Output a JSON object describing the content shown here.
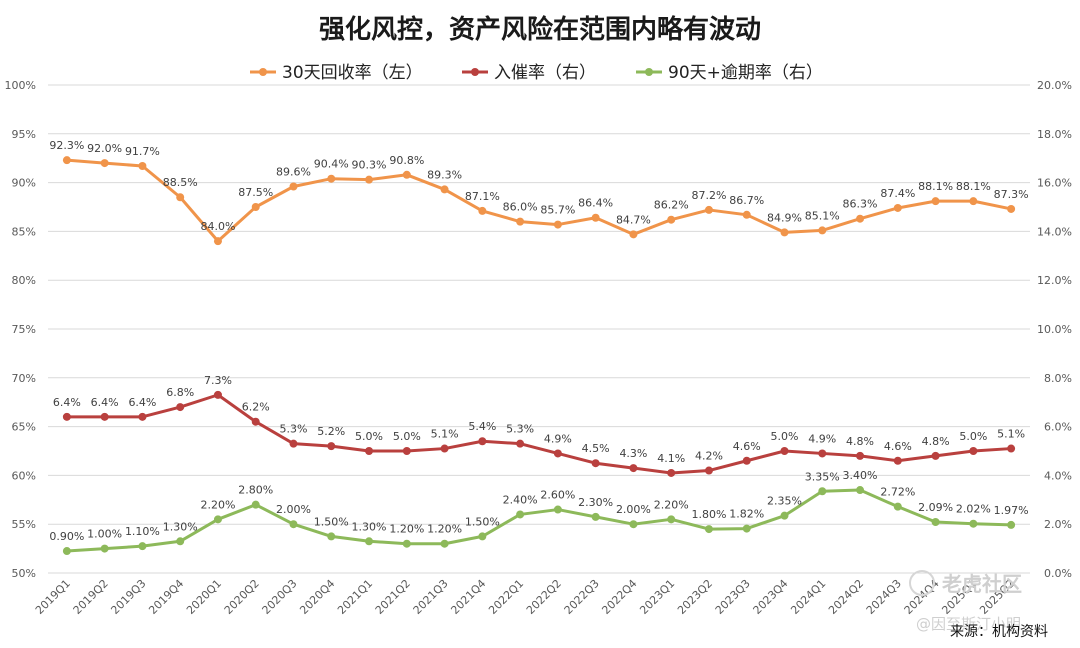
{
  "chart_data": {
    "type": "line",
    "title": "强化风控，资产风险在范围内略有波动",
    "categories": [
      "2019Q1",
      "2019Q2",
      "2019Q3",
      "2019Q4",
      "2020Q1",
      "2020Q2",
      "2020Q3",
      "2020Q4",
      "2021Q1",
      "2021Q2",
      "2021Q3",
      "2021Q4",
      "2022Q1",
      "2022Q2",
      "2022Q3",
      "2022Q4",
      "2023Q1",
      "2023Q2",
      "2023Q3",
      "2023Q4",
      "2024Q1",
      "2024Q2",
      "2024Q3",
      "2024Q4",
      "2025Q1",
      "2025Q2"
    ],
    "left_axis": {
      "min": 50,
      "max": 100,
      "step": 5,
      "tick_labels": [
        "50%",
        "55%",
        "60%",
        "65%",
        "70%",
        "75%",
        "80%",
        "85%",
        "90%",
        "95%",
        "100%"
      ]
    },
    "right_axis": {
      "min": 0,
      "max": 20,
      "step": 2,
      "tick_labels": [
        "0.0%",
        "2.0%",
        "4.0%",
        "6.0%",
        "8.0%",
        "10.0%",
        "12.0%",
        "14.0%",
        "16.0%",
        "18.0%",
        "20.0%"
      ]
    },
    "grid": true,
    "legend_position": "top",
    "series": [
      {
        "name": "30天回收率（左）",
        "axis": "left",
        "color": "#f0944a",
        "values": [
          92.3,
          92.0,
          91.7,
          88.5,
          84.0,
          87.5,
          89.6,
          90.4,
          90.3,
          90.8,
          89.3,
          87.1,
          86.0,
          85.7,
          86.4,
          84.7,
          86.2,
          87.2,
          86.7,
          84.9,
          85.1,
          86.3,
          87.4,
          88.1,
          88.1,
          87.3
        ],
        "labels": [
          "92.3%",
          "92.0%",
          "91.7%",
          "88.5%",
          "84.0%",
          "87.5%",
          "89.6%",
          "90.4%",
          "90.3%",
          "90.8%",
          "89.3%",
          "87.1%",
          "86.0%",
          "85.7%",
          "86.4%",
          "84.7%",
          "86.2%",
          "87.2%",
          "86.7%",
          "84.9%",
          "85.1%",
          "86.3%",
          "87.4%",
          "88.1%",
          "88.1%",
          "87.3%"
        ]
      },
      {
        "name": "入催率（右）",
        "axis": "right",
        "color": "#b9403e",
        "values": [
          6.4,
          6.4,
          6.4,
          6.8,
          7.3,
          6.2,
          5.3,
          5.2,
          5.0,
          5.0,
          5.1,
          5.4,
          5.3,
          4.9,
          4.5,
          4.3,
          4.1,
          4.2,
          4.6,
          5.0,
          4.9,
          4.8,
          4.6,
          4.8,
          5.0,
          5.1
        ],
        "labels": [
          "6.4%",
          "6.4%",
          "6.4%",
          "6.8%",
          "7.3%",
          "6.2%",
          "5.3%",
          "5.2%",
          "5.0%",
          "5.0%",
          "5.1%",
          "5.4%",
          "5.3%",
          "4.9%",
          "4.5%",
          "4.3%",
          "4.1%",
          "4.2%",
          "4.6%",
          "5.0%",
          "4.9%",
          "4.8%",
          "4.6%",
          "4.8%",
          "5.0%",
          "5.1%"
        ]
      },
      {
        "name": "90天+逾期率（右）",
        "axis": "right",
        "color": "#8db95a",
        "values": [
          0.9,
          1.0,
          1.1,
          1.3,
          2.2,
          2.8,
          2.0,
          1.5,
          1.3,
          1.2,
          1.2,
          1.5,
          2.4,
          2.6,
          2.3,
          2.0,
          2.2,
          1.8,
          1.82,
          2.35,
          3.35,
          3.4,
          2.72,
          2.09,
          2.02,
          1.97
        ],
        "labels": [
          "0.90%",
          "1.00%",
          "1.10%",
          "1.30%",
          "2.20%",
          "2.80%",
          "2.00%",
          "1.50%",
          "1.30%",
          "1.20%",
          "1.20%",
          "1.50%",
          "2.40%",
          "2.60%",
          "2.30%",
          "2.00%",
          "2.20%",
          "1.80%",
          "1.82%",
          "2.35%",
          "3.35%",
          "3.40%",
          "2.72%",
          "2.09%",
          "2.02%",
          "1.97%"
        ]
      }
    ]
  },
  "source_note": "来源：机构资料",
  "watermark": {
    "brand": "老虎社区",
    "author": "@因至斯汀小明"
  }
}
